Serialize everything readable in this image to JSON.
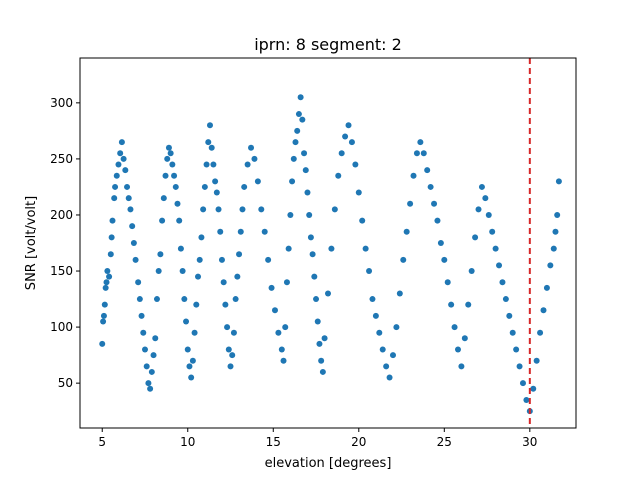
{
  "chart_data": {
    "type": "scatter",
    "title": "iprn: 8 segment: 2",
    "xlabel": "elevation [degrees]",
    "ylabel": "SNR [volt/volt]",
    "xlim": [
      3.7,
      32.7
    ],
    "ylim": [
      10,
      340
    ],
    "xticks": [
      5,
      10,
      15,
      20,
      25,
      30
    ],
    "yticks": [
      50,
      100,
      150,
      200,
      250,
      300
    ],
    "grid": false,
    "point_color": "#1f77b4",
    "vline": {
      "x": 30,
      "color": "#d62728",
      "style": "dashed"
    },
    "series": [
      {
        "points": [
          [
            5.0,
            85
          ],
          [
            5.05,
            105
          ],
          [
            5.1,
            110
          ],
          [
            5.15,
            120
          ],
          [
            5.2,
            135
          ],
          [
            5.25,
            140
          ],
          [
            5.3,
            150
          ],
          [
            5.4,
            145
          ],
          [
            5.5,
            165
          ],
          [
            5.55,
            180
          ],
          [
            5.6,
            195
          ],
          [
            5.7,
            215
          ],
          [
            5.75,
            225
          ],
          [
            5.85,
            235
          ],
          [
            5.95,
            245
          ],
          [
            6.05,
            255
          ],
          [
            6.15,
            265
          ],
          [
            6.25,
            250
          ],
          [
            6.35,
            240
          ],
          [
            6.45,
            225
          ],
          [
            6.55,
            215
          ],
          [
            6.65,
            205
          ],
          [
            6.75,
            190
          ],
          [
            6.85,
            175
          ],
          [
            6.95,
            160
          ],
          [
            7.1,
            140
          ],
          [
            7.2,
            125
          ],
          [
            7.3,
            110
          ],
          [
            7.4,
            95
          ],
          [
            7.5,
            80
          ],
          [
            7.6,
            65
          ],
          [
            7.7,
            50
          ],
          [
            7.8,
            45
          ],
          [
            7.9,
            60
          ],
          [
            8.0,
            75
          ],
          [
            8.1,
            90
          ],
          [
            8.2,
            125
          ],
          [
            8.3,
            150
          ],
          [
            8.4,
            165
          ],
          [
            8.5,
            195
          ],
          [
            8.6,
            215
          ],
          [
            8.7,
            235
          ],
          [
            8.8,
            250
          ],
          [
            8.9,
            260
          ],
          [
            9.0,
            255
          ],
          [
            9.1,
            245
          ],
          [
            9.2,
            235
          ],
          [
            9.3,
            225
          ],
          [
            9.4,
            210
          ],
          [
            9.5,
            195
          ],
          [
            9.6,
            170
          ],
          [
            9.7,
            150
          ],
          [
            9.8,
            125
          ],
          [
            9.9,
            105
          ],
          [
            10.0,
            80
          ],
          [
            10.1,
            65
          ],
          [
            10.2,
            55
          ],
          [
            10.3,
            70
          ],
          [
            10.4,
            95
          ],
          [
            10.5,
            120
          ],
          [
            10.6,
            145
          ],
          [
            10.7,
            160
          ],
          [
            10.8,
            180
          ],
          [
            10.9,
            205
          ],
          [
            11.0,
            225
          ],
          [
            11.1,
            245
          ],
          [
            11.2,
            265
          ],
          [
            11.3,
            280
          ],
          [
            11.4,
            260
          ],
          [
            11.5,
            245
          ],
          [
            11.6,
            230
          ],
          [
            11.7,
            220
          ],
          [
            11.8,
            205
          ],
          [
            11.9,
            185
          ],
          [
            12.0,
            160
          ],
          [
            12.1,
            140
          ],
          [
            12.2,
            120
          ],
          [
            12.3,
            100
          ],
          [
            12.4,
            80
          ],
          [
            12.5,
            65
          ],
          [
            12.6,
            75
          ],
          [
            12.7,
            95
          ],
          [
            12.8,
            125
          ],
          [
            12.9,
            145
          ],
          [
            13.0,
            165
          ],
          [
            13.1,
            185
          ],
          [
            13.2,
            205
          ],
          [
            13.3,
            225
          ],
          [
            13.5,
            245
          ],
          [
            13.7,
            260
          ],
          [
            13.9,
            250
          ],
          [
            14.1,
            230
          ],
          [
            14.3,
            205
          ],
          [
            14.5,
            185
          ],
          [
            14.7,
            160
          ],
          [
            14.9,
            135
          ],
          [
            15.1,
            115
          ],
          [
            15.3,
            95
          ],
          [
            15.5,
            80
          ],
          [
            15.6,
            70
          ],
          [
            15.7,
            100
          ],
          [
            15.8,
            140
          ],
          [
            15.9,
            170
          ],
          [
            16.0,
            200
          ],
          [
            16.1,
            230
          ],
          [
            16.2,
            250
          ],
          [
            16.3,
            265
          ],
          [
            16.4,
            275
          ],
          [
            16.5,
            290
          ],
          [
            16.6,
            305
          ],
          [
            16.7,
            285
          ],
          [
            16.8,
            255
          ],
          [
            16.9,
            240
          ],
          [
            17.0,
            220
          ],
          [
            17.1,
            200
          ],
          [
            17.2,
            180
          ],
          [
            17.3,
            165
          ],
          [
            17.4,
            145
          ],
          [
            17.5,
            125
          ],
          [
            17.6,
            105
          ],
          [
            17.7,
            85
          ],
          [
            17.8,
            70
          ],
          [
            17.9,
            60
          ],
          [
            18.0,
            90
          ],
          [
            18.2,
            130
          ],
          [
            18.4,
            170
          ],
          [
            18.6,
            205
          ],
          [
            18.8,
            235
          ],
          [
            19.0,
            255
          ],
          [
            19.2,
            270
          ],
          [
            19.4,
            280
          ],
          [
            19.6,
            265
          ],
          [
            19.8,
            245
          ],
          [
            20.0,
            220
          ],
          [
            20.2,
            195
          ],
          [
            20.4,
            170
          ],
          [
            20.6,
            150
          ],
          [
            20.8,
            125
          ],
          [
            21.0,
            110
          ],
          [
            21.2,
            95
          ],
          [
            21.4,
            80
          ],
          [
            21.6,
            65
          ],
          [
            21.8,
            55
          ],
          [
            22.0,
            75
          ],
          [
            22.2,
            100
          ],
          [
            22.4,
            130
          ],
          [
            22.6,
            160
          ],
          [
            22.8,
            185
          ],
          [
            23.0,
            210
          ],
          [
            23.2,
            235
          ],
          [
            23.4,
            255
          ],
          [
            23.6,
            265
          ],
          [
            23.8,
            255
          ],
          [
            24.0,
            240
          ],
          [
            24.2,
            225
          ],
          [
            24.4,
            210
          ],
          [
            24.6,
            195
          ],
          [
            24.8,
            175
          ],
          [
            25.0,
            160
          ],
          [
            25.2,
            140
          ],
          [
            25.4,
            120
          ],
          [
            25.6,
            100
          ],
          [
            25.8,
            80
          ],
          [
            26.0,
            65
          ],
          [
            26.2,
            90
          ],
          [
            26.4,
            120
          ],
          [
            26.6,
            150
          ],
          [
            26.8,
            180
          ],
          [
            27.0,
            205
          ],
          [
            27.2,
            225
          ],
          [
            27.4,
            215
          ],
          [
            27.6,
            200
          ],
          [
            27.8,
            185
          ],
          [
            28.0,
            170
          ],
          [
            28.2,
            155
          ],
          [
            28.4,
            140
          ],
          [
            28.6,
            125
          ],
          [
            28.8,
            110
          ],
          [
            29.0,
            95
          ],
          [
            29.2,
            80
          ],
          [
            29.4,
            65
          ],
          [
            29.6,
            50
          ],
          [
            29.8,
            35
          ],
          [
            30.0,
            25
          ],
          [
            30.2,
            45
          ],
          [
            30.4,
            70
          ],
          [
            30.6,
            95
          ],
          [
            30.8,
            115
          ],
          [
            31.0,
            135
          ],
          [
            31.2,
            155
          ],
          [
            31.4,
            170
          ],
          [
            31.5,
            185
          ],
          [
            31.6,
            200
          ],
          [
            31.7,
            230
          ]
        ]
      }
    ]
  }
}
